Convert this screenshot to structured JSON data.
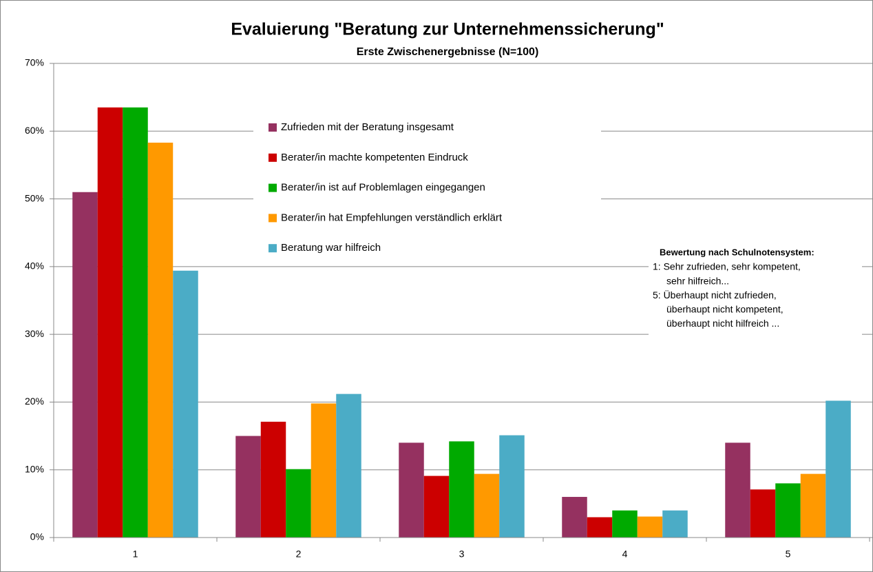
{
  "chart_data": {
    "type": "bar",
    "title": "Evaluierung  \"Beratung zur Unternehmenssicherung\"",
    "subtitle": "Erste Zwischenergebnisse (N=100)",
    "categories": [
      "1",
      "2",
      "3",
      "4",
      "5"
    ],
    "series": [
      {
        "name": "Zufrieden mit der Beratung insgesamt",
        "color": "#953160",
        "values": [
          51,
          15,
          14,
          6,
          14
        ]
      },
      {
        "name": "Berater/in machte kompetenten Eindruck",
        "color": "#cc0000",
        "values": [
          63.5,
          17.1,
          9.1,
          3,
          7.1
        ]
      },
      {
        "name": "Berater/in ist auf Problemlagen eingegangen",
        "color": "#00aa00",
        "values": [
          63.5,
          10.1,
          14.2,
          4,
          8
        ]
      },
      {
        "name": "Berater/in hat Empfehlungen verständlich erklärt",
        "color": "#ff9900",
        "values": [
          58.3,
          19.8,
          9.4,
          3.1,
          9.4
        ]
      },
      {
        "name": "Beratung war hilfreich",
        "color": "#4bacc6",
        "values": [
          39.4,
          21.2,
          15.1,
          4,
          20.2
        ]
      }
    ],
    "ylim": [
      0,
      70
    ],
    "yticks": [
      {
        "value": 0,
        "label": "0%"
      },
      {
        "value": 10,
        "label": "10%"
      },
      {
        "value": 20,
        "label": "20%"
      },
      {
        "value": 30,
        "label": "30%"
      },
      {
        "value": 40,
        "label": "40%"
      },
      {
        "value": 50,
        "label": "50%"
      },
      {
        "value": 60,
        "label": "60%"
      },
      {
        "value": 70,
        "label": "70%"
      }
    ],
    "grid": true,
    "annotation": {
      "title": "Bewertung nach Schulnotensystem:",
      "items": [
        [
          "1: Sehr zufrieden, sehr kompetent,",
          "sehr hilfreich..."
        ],
        [
          "5: Überhaupt nicht zufrieden,",
          "überhaupt nicht kompetent,",
          "überhaupt nicht hilfreich ..."
        ]
      ]
    }
  }
}
